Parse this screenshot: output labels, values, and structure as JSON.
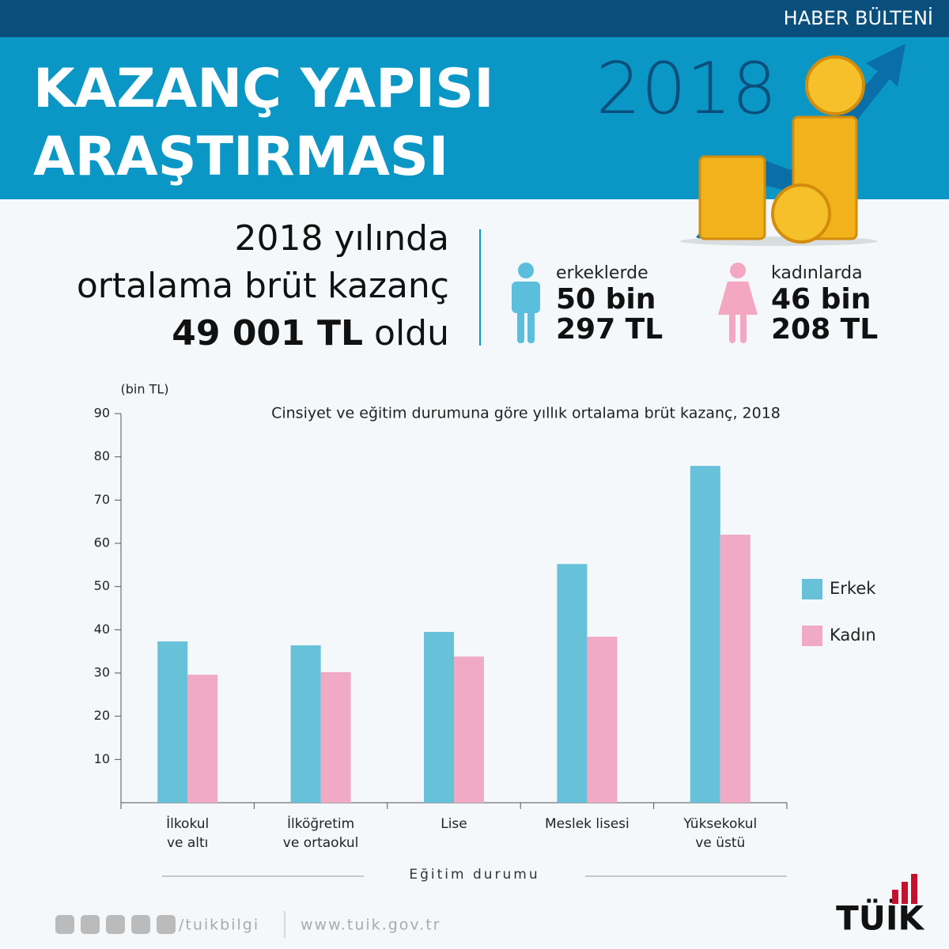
{
  "header": {
    "bulletin": "HABER BÜLTENİ",
    "title": "KAZANÇ YAPISI\nARAŞTIRMASI",
    "year": "2018"
  },
  "summary": {
    "line1": "2018 yılında",
    "line2": "ortalama brüt kazanç",
    "amount": "49 001 TL",
    "suffix": "oldu",
    "men": {
      "label": "erkeklerde",
      "line1": "50 bin",
      "line2": "297 TL"
    },
    "women": {
      "label": "kadınlarda",
      "line1": "46 bin",
      "line2": "208 TL"
    }
  },
  "chart_data": {
    "type": "bar",
    "title": "Cinsiyet ve eğitim durumuna göre yıllık ortalama brüt kazanç, 2018",
    "y_label": "(bin TL)",
    "x_label": "Eğitim durumu",
    "categories": [
      "İlkokul\nve altı",
      "İlköğretim\nve ortaokul",
      "Lise",
      "Meslek lisesi",
      "Yüksekokul\nve üstü"
    ],
    "series": [
      {
        "name": "Erkek",
        "color": "#66c1d9",
        "values": [
          37.3,
          36.4,
          39.5,
          55.2,
          77.9
        ]
      },
      {
        "name": "Kadın",
        "color": "#f0aac4",
        "values": [
          29.6,
          30.2,
          33.8,
          38.4,
          62.0
        ]
      }
    ],
    "ylim": [
      0,
      90
    ],
    "yticks": [
      10,
      20,
      30,
      40,
      50,
      60,
      70,
      80,
      90
    ],
    "legend": "right"
  },
  "footer": {
    "social": "/tuikbilgi",
    "website": "www.tuik.gov.tr",
    "logo": "TÜİK"
  }
}
